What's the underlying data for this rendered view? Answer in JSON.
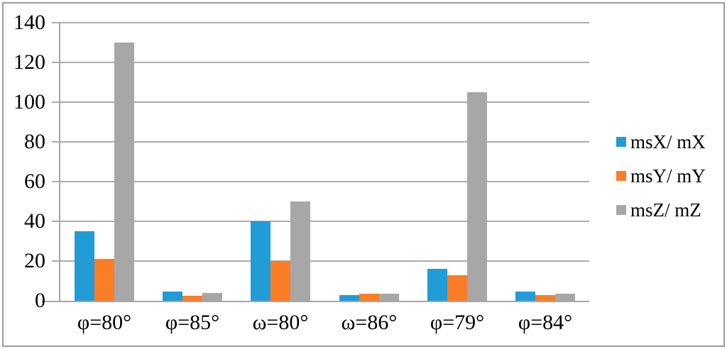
{
  "chart_data": {
    "type": "bar",
    "title": "",
    "xlabel": "",
    "ylabel": "",
    "categories": [
      "φ=80°",
      "φ=85°",
      "ω=80°",
      "ω=86°",
      "φ=79°",
      "φ=84°"
    ],
    "series": [
      {
        "name": "msX/ mX",
        "color": "#219CD7",
        "values": [
          35,
          4.5,
          40,
          3,
          16,
          4.5
        ]
      },
      {
        "name": "msY/ mY",
        "color": "#FB7D25",
        "values": [
          21,
          2.5,
          20,
          3.5,
          13,
          3
        ]
      },
      {
        "name": "msZ/ mZ",
        "color": "#A7A7A7",
        "values": [
          130,
          4,
          50,
          3.5,
          105,
          3.5
        ]
      }
    ],
    "ylim": [
      0,
      140
    ],
    "ytick_step": 20,
    "ytick_labels": [
      "0",
      "20",
      "40",
      "60",
      "80",
      "100",
      "120",
      "140"
    ],
    "grid": true,
    "legend_position": "right"
  },
  "colors": {
    "axis": "#A6A6A6",
    "gridline": "#ACACAC",
    "frame": "#9C9C9C",
    "background": "#FFFFFF",
    "text": "#000000"
  }
}
